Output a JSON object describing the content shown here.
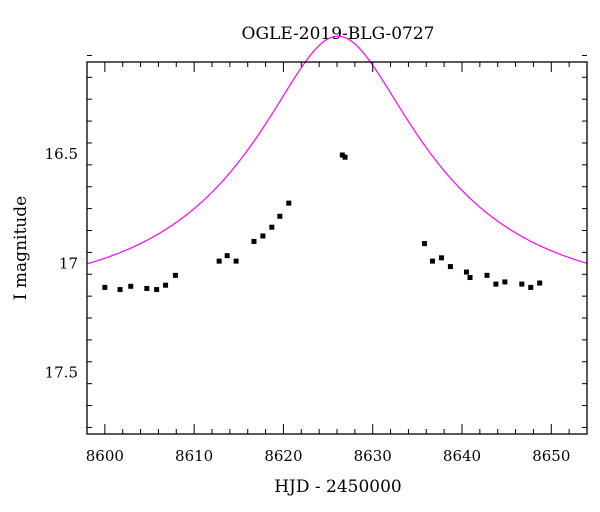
{
  "chart_data": {
    "type": "scatter",
    "title": "OGLE-2019-BLG-0727",
    "xlabel": "HJD - 2450000",
    "ylabel": "I magnitude",
    "xlim": [
      8598,
      8654
    ],
    "ylim": [
      17.78,
      16.08
    ],
    "y_inverted": true,
    "grid": false,
    "x_ticks": [
      8600,
      8610,
      8620,
      8630,
      8640,
      8650
    ],
    "x_tick_labels": [
      "8600",
      "8610",
      "8620",
      "8630",
      "8640",
      "8650"
    ],
    "y_ticks": [
      16.5,
      17.0,
      17.5
    ],
    "y_tick_labels": [
      "16.5",
      "17",
      "17.5"
    ],
    "series": [
      {
        "kind": "points",
        "color": "#000000",
        "points": [
          {
            "x": 8600.0,
            "y": 17.11,
            "err": 0.01
          },
          {
            "x": 8601.7,
            "y": 17.12,
            "err": 0.01
          },
          {
            "x": 8602.9,
            "y": 17.105,
            "err": 0.01
          },
          {
            "x": 8604.7,
            "y": 17.115,
            "err": 0.01
          },
          {
            "x": 8605.8,
            "y": 17.12,
            "err": 0.01
          },
          {
            "x": 8606.8,
            "y": 17.1,
            "err": 0.01
          },
          {
            "x": 8607.9,
            "y": 17.055,
            "err": 0.01
          },
          {
            "x": 8612.8,
            "y": 16.99,
            "err": 0.01
          },
          {
            "x": 8613.7,
            "y": 16.965,
            "err": 0.01
          },
          {
            "x": 8614.7,
            "y": 16.99,
            "err": 0.01
          },
          {
            "x": 8616.7,
            "y": 16.9,
            "err": 0.01
          },
          {
            "x": 8617.7,
            "y": 16.875,
            "err": 0.01
          },
          {
            "x": 8618.7,
            "y": 16.835,
            "err": 0.01
          },
          {
            "x": 8619.6,
            "y": 16.785,
            "err": 0.01
          },
          {
            "x": 8620.6,
            "y": 16.725,
            "err": 0.01
          },
          {
            "x": 8626.6,
            "y": 16.505,
            "err": 0.01
          },
          {
            "x": 8626.9,
            "y": 16.515,
            "err": 0.01
          },
          {
            "x": 8635.8,
            "y": 16.91,
            "err": 0.01
          },
          {
            "x": 8636.7,
            "y": 16.99,
            "err": 0.01
          },
          {
            "x": 8637.7,
            "y": 16.975,
            "err": 0.01
          },
          {
            "x": 8638.7,
            "y": 17.015,
            "err": 0.01
          },
          {
            "x": 8640.5,
            "y": 17.04,
            "err": 0.01
          },
          {
            "x": 8640.9,
            "y": 17.065,
            "err": 0.01
          },
          {
            "x": 8642.8,
            "y": 17.055,
            "err": 0.01
          },
          {
            "x": 8643.8,
            "y": 17.095,
            "err": 0.01
          },
          {
            "x": 8644.8,
            "y": 17.085,
            "err": 0.01
          },
          {
            "x": 8646.7,
            "y": 17.095,
            "err": 0.01
          },
          {
            "x": 8647.7,
            "y": 17.11,
            "err": 0.01
          },
          {
            "x": 8648.7,
            "y": 17.09,
            "err": 0.01
          }
        ]
      },
      {
        "kind": "model-curve",
        "color": "#ff00ff",
        "t0": 8626.1,
        "u0": 0.35,
        "tE": 20.0,
        "baseline_mag": 17.15
      }
    ]
  }
}
